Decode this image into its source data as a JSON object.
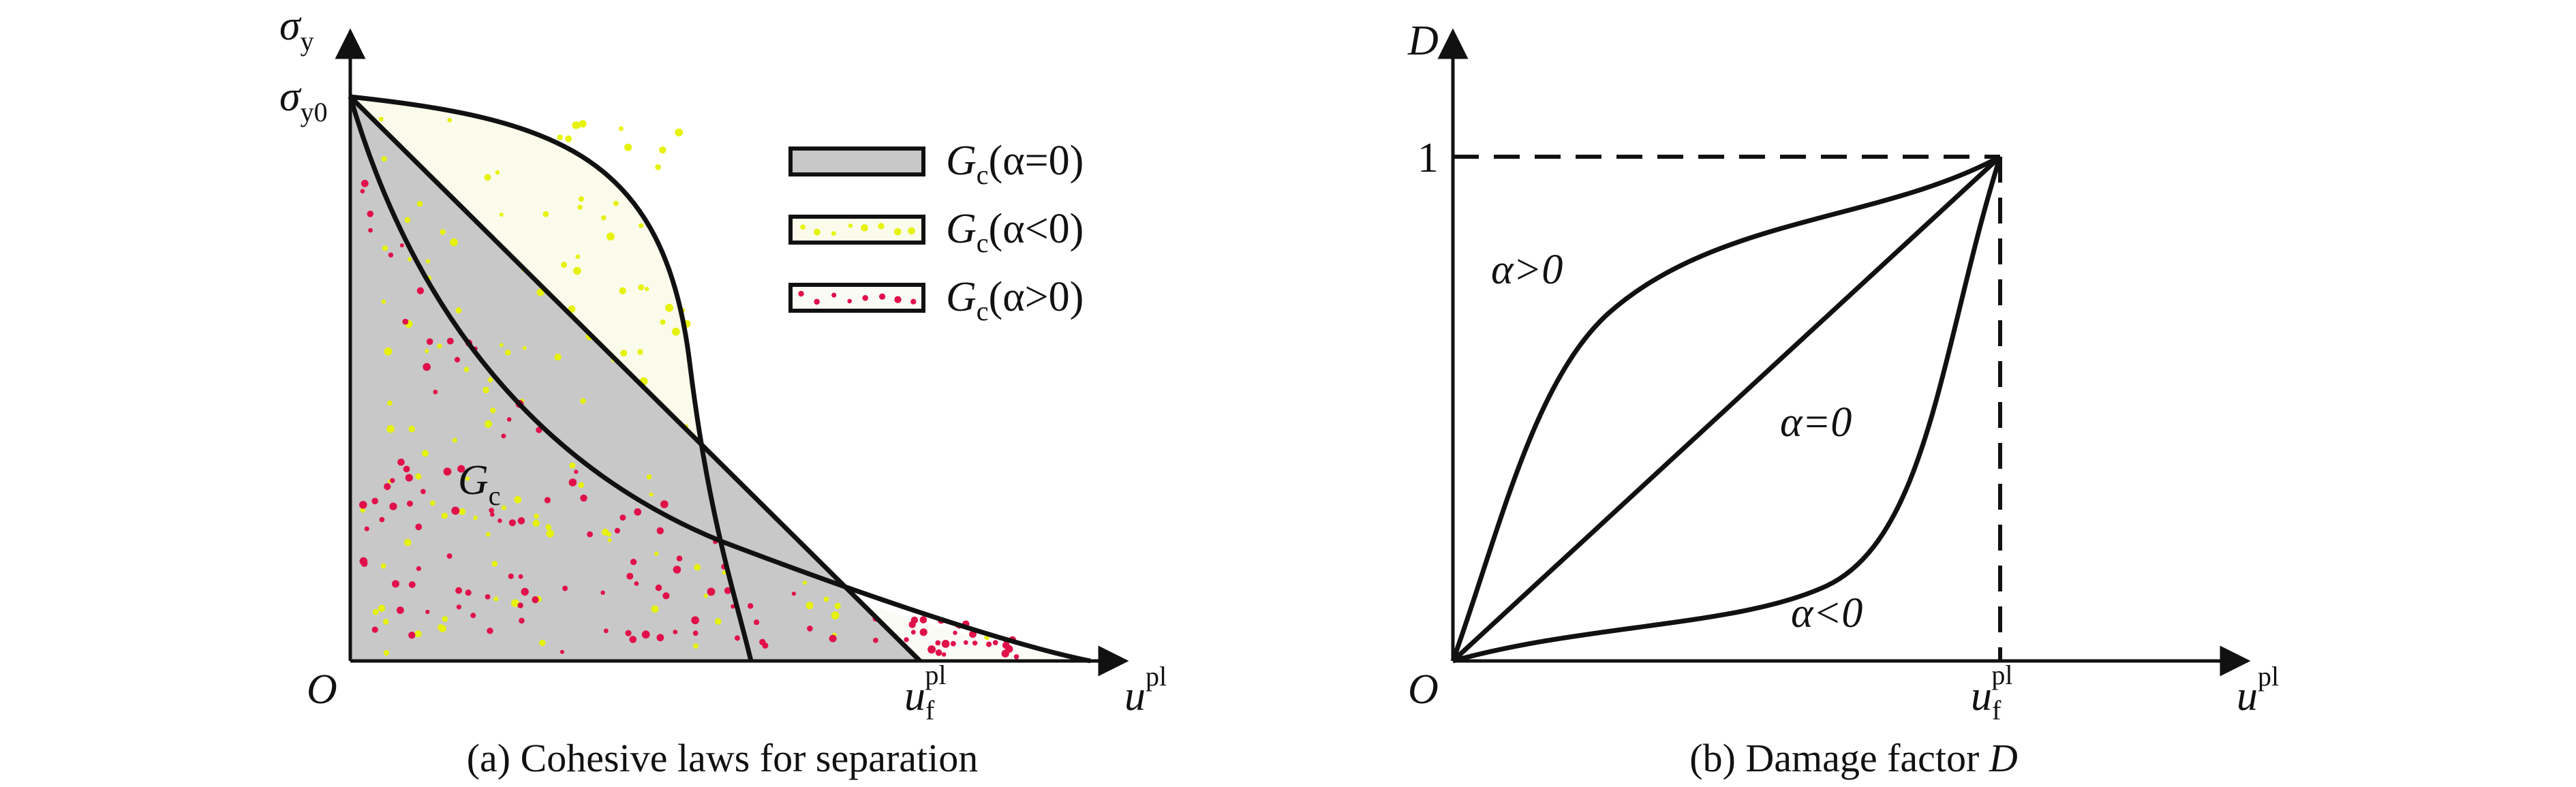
{
  "colors": {
    "line": "#111111",
    "gray_fill": "#c8c8c8",
    "yellow_dot": "#e6f20a",
    "red_dot": "#e0114a",
    "dot_bg": "#fafbea"
  },
  "panel_a": {
    "caption": "(a) Cohesive laws for separation",
    "y_axis": {
      "main": "σ",
      "sub": "y"
    },
    "y_tick": {
      "main": "σ",
      "sub": "y0"
    },
    "origin": "O",
    "x_axis": {
      "main": "u",
      "sup": "pl"
    },
    "x_tick": {
      "main": "u",
      "sub": "f",
      "sup": "pl"
    },
    "area_label": {
      "main": "G",
      "sub": "c"
    },
    "legend": [
      {
        "main": "G",
        "sub": "c",
        "cond": "(α=0)",
        "pattern": "gray"
      },
      {
        "main": "G",
        "sub": "c",
        "cond": "(α<0)",
        "pattern": "yellow"
      },
      {
        "main": "G",
        "sub": "c",
        "cond": "(α>0)",
        "pattern": "red"
      }
    ]
  },
  "panel_b": {
    "caption_prefix": "(b) Damage factor ",
    "caption_var": "D",
    "y_axis": "D",
    "y_tick": "1",
    "origin": "O",
    "x_axis": {
      "main": "u",
      "sup": "pl"
    },
    "x_tick": {
      "main": "u",
      "sub": "f",
      "sup": "pl"
    },
    "curve_labels": {
      "positive": "α>0",
      "zero": "α=0",
      "negative": "α<0"
    }
  }
}
